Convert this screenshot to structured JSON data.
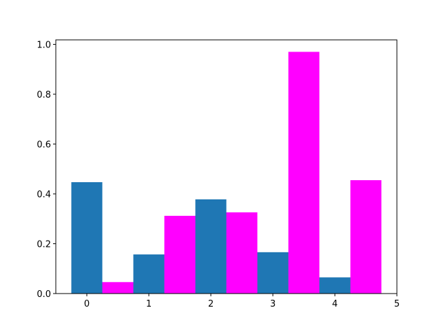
{
  "chart_data": {
    "type": "bar",
    "series": [
      {
        "color": "#1f77b4",
        "x": [
          0,
          1,
          2,
          3,
          4
        ],
        "values": [
          0.447,
          0.157,
          0.378,
          0.166,
          0.065
        ]
      },
      {
        "color": "#ff00ff",
        "x": [
          0.5,
          1.5,
          2.5,
          3.5,
          4.5
        ],
        "values": [
          0.046,
          0.312,
          0.326,
          0.97,
          0.455
        ]
      }
    ],
    "xlim": [
      -0.5,
      5.0
    ],
    "xticks": [
      0,
      1,
      2,
      3,
      4,
      5
    ],
    "ylim": [
      0,
      1.018
    ],
    "yticks": [
      {
        "value": 0,
        "label": "0.0"
      },
      {
        "value": 0.2,
        "label": "0.2"
      },
      {
        "value": 0.4,
        "label": "0.4"
      },
      {
        "value": 0.6,
        "label": "0.6"
      },
      {
        "value": 0.8,
        "label": "0.8"
      },
      {
        "value": 1.0,
        "label": "1.0"
      }
    ],
    "grid": false
  }
}
